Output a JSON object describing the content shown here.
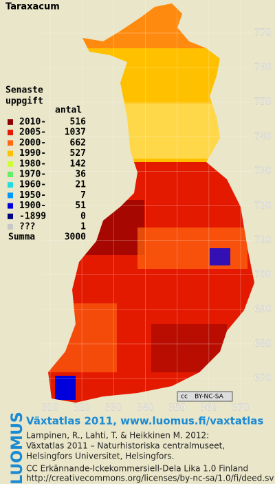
{
  "title": "Taraxacum",
  "legend": {
    "heading": [
      "Senaste",
      "uppgift"
    ],
    "count_heading": "antal",
    "items": [
      {
        "label": "2010-",
        "count": 516,
        "color": "#8b0000"
      },
      {
        "label": "2005-",
        "count": 1037,
        "color": "#e41a00"
      },
      {
        "label": "2000-",
        "count": 662,
        "color": "#ff6a10"
      },
      {
        "label": "1990-",
        "count": 527,
        "color": "#ffc000"
      },
      {
        "label": "1980-",
        "count": 142,
        "color": "#ccff33"
      },
      {
        "label": "1970-",
        "count": 36,
        "color": "#66ee66"
      },
      {
        "label": "1960-",
        "count": 21,
        "color": "#22dddd"
      },
      {
        "label": "1950-",
        "count": 7,
        "color": "#0099ff"
      },
      {
        "label": "1900-",
        "count": 51,
        "color": "#0000dd"
      },
      {
        "label": "-1899",
        "count": 0,
        "color": "#000080"
      },
      {
        "label": "???",
        "count": 1,
        "color": "#c8c8c8"
      }
    ],
    "total_label": "Summa",
    "total": 3000
  },
  "x_ticks": [
    310,
    320,
    330,
    340,
    350,
    360,
    370
  ],
  "y_ticks": [
    670,
    680,
    690,
    700,
    710,
    720,
    730,
    740,
    750,
    760,
    770
  ],
  "license_badge": [
    "cc",
    "BY-NC-SA"
  ],
  "footer": {
    "brand": "LUOMUS",
    "headline": "Växtatlas 2011, www.luomus.fi/vaxtatlas",
    "citation": [
      "Lampinen, R., Lahti, T. & Heikkinen M. 2012:",
      "Växtatlas 2011 – Naturhistoriska centralmuseet,",
      "Helsingfors Universitet, Helsingfors."
    ],
    "license": [
      "CC Erkännande-Ickekommersiell-Dela Lika 1.0 Finland",
      "http://creativecommons.org/licenses/by-nc-sa/1.0/fi/deed.sv"
    ]
  }
}
